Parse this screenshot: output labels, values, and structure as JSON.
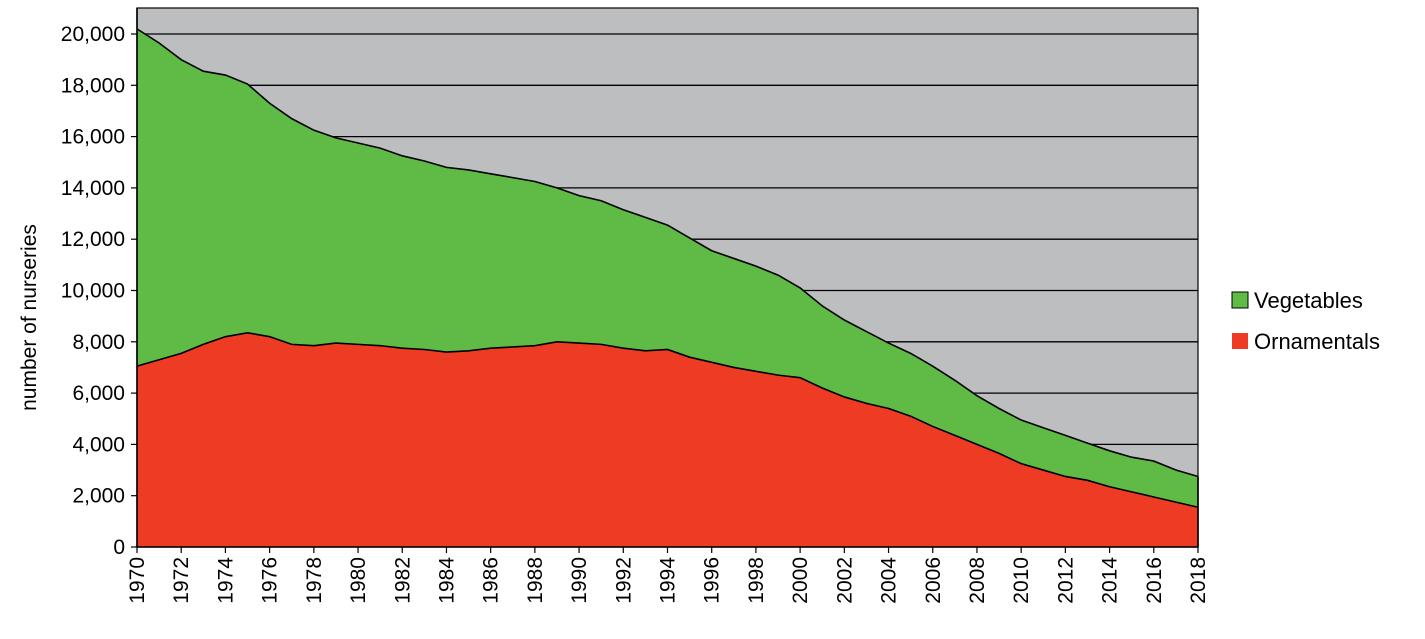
{
  "chart_data": {
    "type": "area",
    "stacked": true,
    "title": "",
    "xlabel": "",
    "ylabel": "number of nurseries",
    "ylim": [
      0,
      20000
    ],
    "xlim": [
      1970,
      2018
    ],
    "yticks": [
      0,
      2000,
      4000,
      6000,
      8000,
      10000,
      12000,
      14000,
      16000,
      18000,
      20000
    ],
    "ytick_labels": [
      "0",
      "2,000",
      "4,000",
      "6,000",
      "8,000",
      "10,000",
      "12,000",
      "14,000",
      "16,000",
      "18,000",
      "20,000"
    ],
    "xticks": [
      1970,
      1972,
      1974,
      1976,
      1978,
      1980,
      1982,
      1984,
      1986,
      1988,
      1990,
      1992,
      1994,
      1996,
      1998,
      2000,
      2002,
      2004,
      2006,
      2008,
      2010,
      2012,
      2014,
      2016,
      2018
    ],
    "xtick_labels": [
      "1970",
      "1972",
      "1974",
      "1976",
      "1978",
      "1980",
      "1982",
      "1984",
      "1986",
      "1988",
      "1990",
      "1992",
      "1994",
      "1996",
      "1998",
      "2000",
      "2002",
      "2004",
      "2006",
      "2008",
      "2010",
      "2012",
      "2014",
      "2016",
      "2018"
    ],
    "grid": true,
    "legend_position": "right",
    "x": [
      1970,
      1971,
      1972,
      1973,
      1974,
      1975,
      1976,
      1977,
      1978,
      1979,
      1980,
      1981,
      1982,
      1983,
      1984,
      1985,
      1986,
      1987,
      1988,
      1989,
      1990,
      1991,
      1992,
      1993,
      1994,
      1995,
      1996,
      1997,
      1998,
      1999,
      2000,
      2001,
      2002,
      2003,
      2004,
      2005,
      2006,
      2007,
      2008,
      2009,
      2010,
      2011,
      2012,
      2013,
      2014,
      2015,
      2016,
      2017,
      2018
    ],
    "series": [
      {
        "name": "Ornamentals",
        "color": "#ee3b24",
        "values": [
          7050,
          7300,
          7550,
          7900,
          8200,
          8350,
          8200,
          7900,
          7850,
          7950,
          7900,
          7850,
          7750,
          7700,
          7600,
          7650,
          7750,
          7800,
          7850,
          8000,
          7950,
          7900,
          7750,
          7650,
          7700,
          7400,
          7200,
          7000,
          6850,
          6700,
          6600,
          6200,
          5850,
          5600,
          5400,
          5100,
          4700,
          4350,
          4000,
          3650,
          3250,
          3000,
          2750,
          2600,
          2350,
          2150,
          1950,
          1750,
          1550
        ]
      },
      {
        "name": "Vegetables",
        "color": "#5fba46",
        "values": [
          13150,
          12350,
          11450,
          10650,
          10200,
          9700,
          9100,
          8800,
          8400,
          8000,
          7850,
          7700,
          7500,
          7350,
          7200,
          7050,
          6800,
          6600,
          6400,
          6000,
          5750,
          5600,
          5400,
          5200,
          4850,
          4650,
          4350,
          4250,
          4100,
          3900,
          3500,
          3200,
          3000,
          2800,
          2550,
          2450,
          2350,
          2150,
          1900,
          1750,
          1700,
          1650,
          1600,
          1450,
          1400,
          1350,
          1400,
          1250,
          1200
        ]
      }
    ]
  },
  "legend": [
    {
      "label": "Vegetables",
      "color": "#5fba46"
    },
    {
      "label": "Ornamentals",
      "color": "#ee3b24"
    }
  ],
  "colors": {
    "plot_background": "#bdbec0",
    "gridline": "#000000",
    "outline": "#000000"
  }
}
